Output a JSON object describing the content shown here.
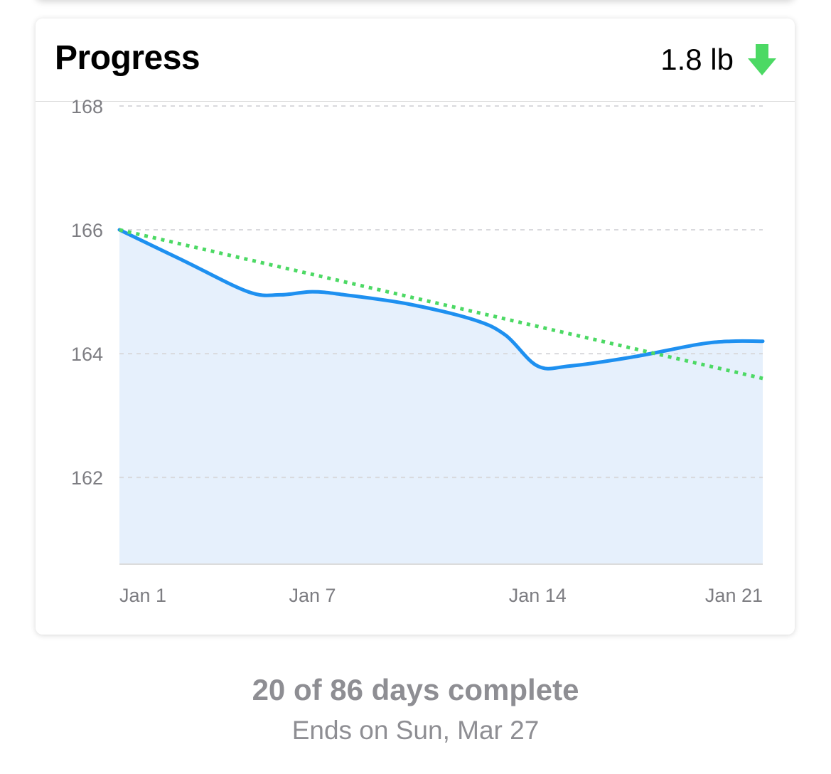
{
  "card": {
    "title": "Progress",
    "change_value": "1.8 lb",
    "change_direction_icon": "down-arrow-icon",
    "change_color": "#4cd964"
  },
  "chart_data": {
    "type": "line",
    "x_ticks": [
      "Jan 1",
      "Jan 7",
      "Jan 14",
      "Jan 21"
    ],
    "y_ticks": [
      168,
      166,
      164,
      162
    ],
    "ylim": [
      160.6,
      168
    ],
    "xlim": [
      "Jan 1",
      "Jan 21"
    ],
    "grid": true,
    "series": [
      {
        "style": "solid-area",
        "color": "#1e90f0",
        "fill": "#e6f0fc",
        "points": [
          {
            "x": "Jan 1",
            "y": 166.0
          },
          {
            "x": "Jan 3",
            "y": 165.5
          },
          {
            "x": "Jan 5",
            "y": 165.0
          },
          {
            "x": "Jan 6",
            "y": 164.95
          },
          {
            "x": "Jan 7",
            "y": 165.0
          },
          {
            "x": "Jan 8",
            "y": 164.95
          },
          {
            "x": "Jan 10",
            "y": 164.8
          },
          {
            "x": "Jan 12",
            "y": 164.55
          },
          {
            "x": "Jan 13",
            "y": 164.3
          },
          {
            "x": "Jan 14",
            "y": 163.8
          },
          {
            "x": "Jan 15",
            "y": 163.8
          },
          {
            "x": "Jan 17",
            "y": 163.95
          },
          {
            "x": "Jan 19",
            "y": 164.15
          },
          {
            "x": "Jan 20",
            "y": 164.2
          },
          {
            "x": "Jan 21",
            "y": 164.2
          }
        ]
      },
      {
        "style": "dotted-trend",
        "color": "#4cd964",
        "points": [
          {
            "x": "Jan 1",
            "y": 166.0
          },
          {
            "x": "Jan 21",
            "y": 163.6
          }
        ]
      }
    ]
  },
  "footer": {
    "days_complete": "20 of 86 days complete",
    "ends_on": "Ends on Sun, Mar 27"
  }
}
